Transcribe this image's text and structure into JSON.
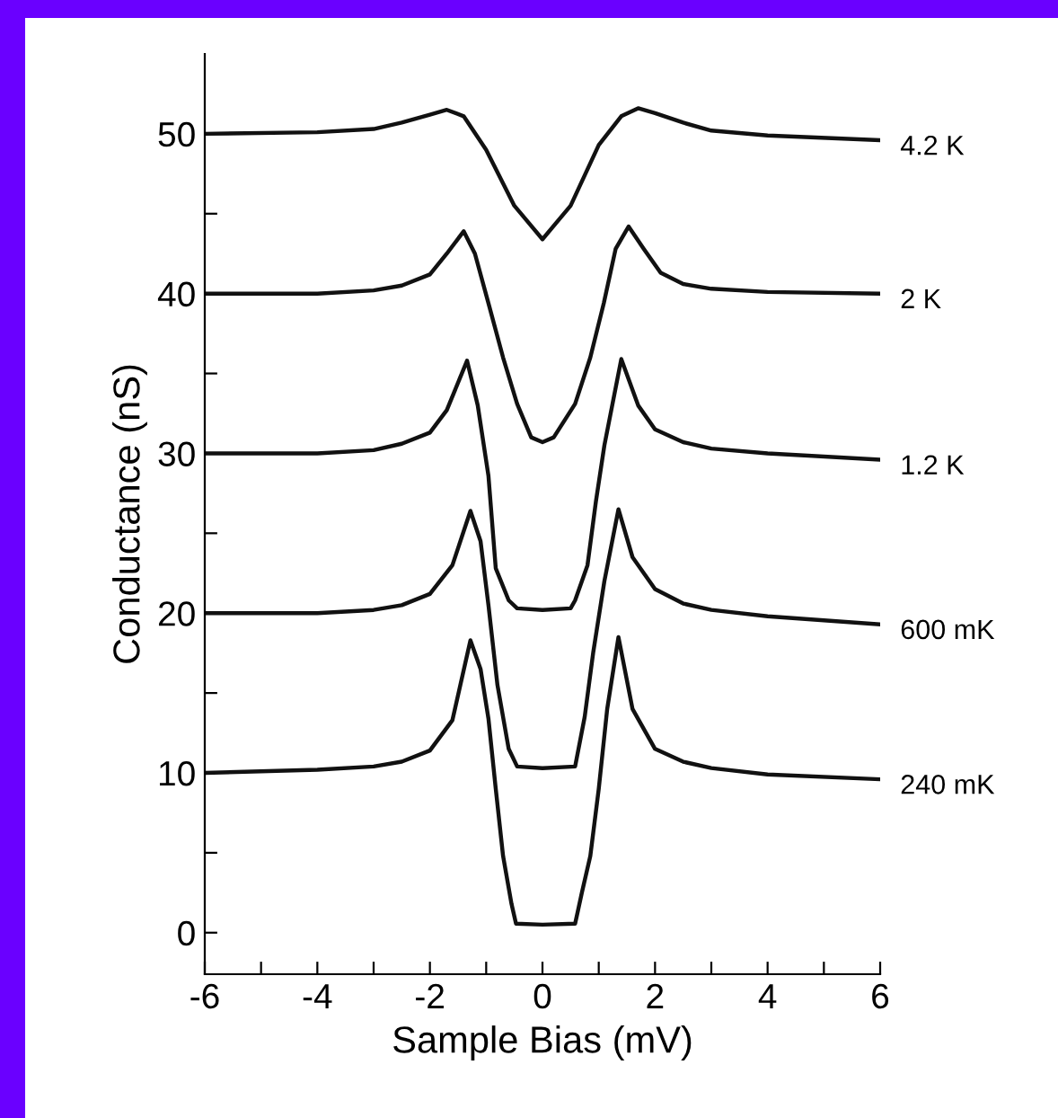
{
  "chart_data": {
    "type": "line",
    "xlabel": "Sample Bias (mV)",
    "ylabel": "Conductance (nS)",
    "xlim": [
      -6,
      6
    ],
    "ylim": [
      -2.6,
      55
    ],
    "xticks": [
      -6,
      {
        "value": -5,
        "label": null
      },
      -4,
      {
        "value": -3,
        "label": null
      },
      -2,
      {
        "value": -1,
        "label": null
      },
      0,
      {
        "value": 1,
        "label": null
      },
      2,
      {
        "value": 3,
        "label": null
      },
      4,
      {
        "value": 5,
        "label": null
      },
      6
    ],
    "yticks": [
      0,
      {
        "value": 5,
        "label": null
      },
      10,
      {
        "value": 15,
        "label": null
      },
      20,
      {
        "value": 25,
        "label": null
      },
      30,
      {
        "value": 35,
        "label": null
      },
      40,
      {
        "value": 45,
        "label": null
      },
      50
    ],
    "line_style": "solid",
    "series": [
      {
        "name": "4.2 K",
        "color": "#111111",
        "x": [
          -6,
          -4,
          -3,
          -2.5,
          -2,
          -1.7,
          -1.4,
          -1,
          -0.5,
          0,
          0.5,
          1,
          1.4,
          1.7,
          2,
          2.5,
          3,
          4,
          6
        ],
        "values": [
          50,
          50.1,
          50.3,
          50.7,
          51.2,
          51.5,
          51.1,
          49,
          45.5,
          43.4,
          45.5,
          49.3,
          51.1,
          51.6,
          51.3,
          50.7,
          50.2,
          49.9,
          49.6
        ]
      },
      {
        "name": "2 K",
        "color": "#111111",
        "x": [
          -6,
          -4,
          -3,
          -2.5,
          -2,
          -1.7,
          -1.4,
          -1.2,
          -0.96,
          -0.7,
          -0.45,
          -0.2,
          0,
          0.2,
          0.58,
          0.85,
          1.09,
          1.3,
          1.53,
          1.8,
          2.1,
          2.5,
          3,
          4,
          6
        ],
        "values": [
          40,
          40,
          40.2,
          40.5,
          41.2,
          42.5,
          43.9,
          42.5,
          39.4,
          36,
          33.1,
          31,
          30.7,
          31,
          33.1,
          36,
          39.4,
          42.8,
          44.2,
          42.8,
          41.3,
          40.6,
          40.3,
          40.1,
          40
        ]
      },
      {
        "name": "1.2 K",
        "color": "#111111",
        "x": [
          -6,
          -4,
          -3,
          -2.5,
          -2,
          -1.7,
          -1.34,
          -1.15,
          -0.96,
          -0.83,
          -0.6,
          -0.45,
          0,
          0.5,
          0.58,
          0.8,
          0.95,
          1.1,
          1.4,
          1.7,
          2,
          2.5,
          3,
          4,
          6
        ],
        "values": [
          30,
          30,
          30.2,
          30.6,
          31.3,
          32.7,
          35.8,
          33,
          28.6,
          22.8,
          20.8,
          20.3,
          20.2,
          20.3,
          20.8,
          23,
          27,
          30.5,
          35.9,
          33,
          31.5,
          30.7,
          30.3,
          30,
          29.6
        ]
      },
      {
        "name": "600 mK",
        "color": "#111111",
        "x": [
          -6,
          -4,
          -3,
          -2.5,
          -2,
          -1.6,
          -1.28,
          -1.1,
          -0.96,
          -0.8,
          -0.6,
          -0.45,
          0,
          0.58,
          0.75,
          0.9,
          1.1,
          1.35,
          1.6,
          2,
          2.5,
          3,
          4,
          6
        ],
        "values": [
          20,
          20,
          20.2,
          20.5,
          21.2,
          23,
          26.4,
          24.5,
          20.5,
          15.5,
          11.5,
          10.4,
          10.3,
          10.4,
          13.5,
          17.5,
          22,
          26.5,
          23.5,
          21.5,
          20.6,
          20.2,
          19.8,
          19.3
        ]
      },
      {
        "name": "240 mK",
        "color": "#111111",
        "x": [
          -6,
          -4,
          -3,
          -2.5,
          -2,
          -1.6,
          -1.28,
          -1.1,
          -0.96,
          -0.83,
          -0.7,
          -0.55,
          -0.47,
          0,
          0.58,
          0.7,
          0.85,
          1.0,
          1.15,
          1.35,
          1.6,
          2,
          2.5,
          3,
          4,
          6
        ],
        "values": [
          10,
          10.2,
          10.4,
          10.7,
          11.4,
          13.3,
          18.3,
          16.5,
          13.4,
          9,
          4.8,
          1.8,
          0.56,
          0.5,
          0.56,
          2.5,
          4.8,
          9,
          14,
          18.5,
          14,
          11.5,
          10.7,
          10.3,
          9.9,
          9.6
        ]
      }
    ]
  }
}
